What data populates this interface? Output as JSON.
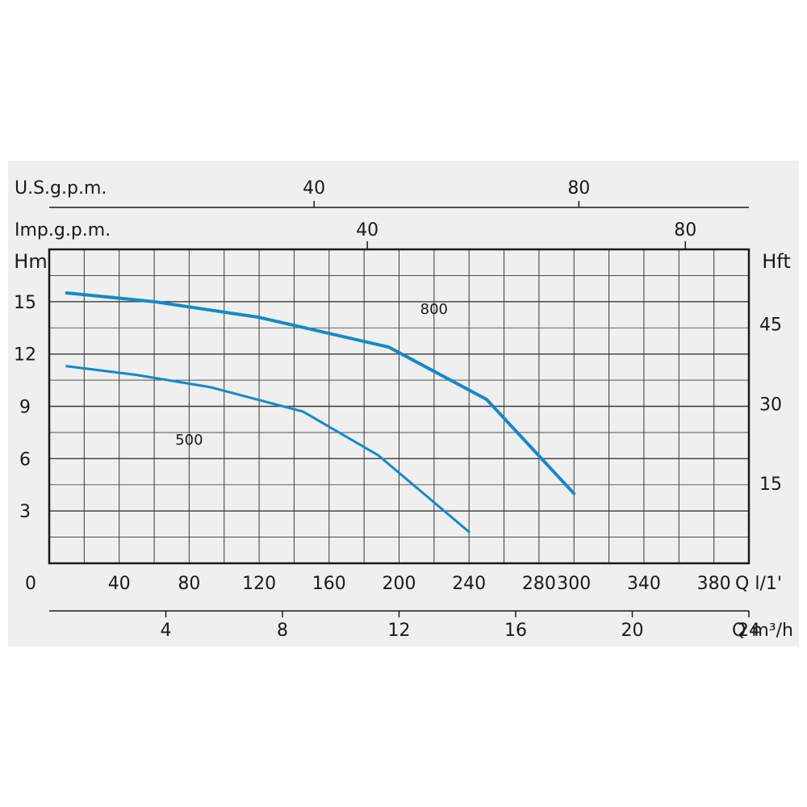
{
  "chart_data": {
    "type": "line",
    "x_axis": {
      "label": "Q l/1'",
      "ticks": [
        0,
        40,
        80,
        120,
        160,
        200,
        240,
        280,
        300,
        340,
        380
      ],
      "range": [
        0,
        400
      ],
      "grid_step": 20
    },
    "y_axis_left": {
      "label": "Hm",
      "ticks": [
        3,
        6,
        9,
        12,
        15
      ],
      "range": [
        0,
        18
      ],
      "grid_step": 1.5
    },
    "y_axis_right": {
      "label": "Hft",
      "ticks": [
        15,
        30,
        45
      ]
    },
    "secondary_axes": [
      {
        "label": "U.S.g.p.m.",
        "ticks": [
          40,
          80
        ],
        "liters_per_unit": 3.785
      },
      {
        "label": "Imp.g.p.m.",
        "ticks": [
          40,
          80
        ],
        "liters_per_unit": 4.546
      },
      {
        "label": "Q m³/h",
        "ticks": [
          4,
          8,
          12,
          16,
          20,
          24
        ],
        "liters_per_unit": 16.6667
      }
    ],
    "series": [
      {
        "name": "800",
        "label_at": [
          220,
          14.3
        ],
        "stroke_width": 4,
        "x": [
          10,
          60,
          120,
          194,
          250,
          300
        ],
        "y": [
          15.5,
          15.0,
          14.1,
          12.4,
          9.4,
          4.0
        ]
      },
      {
        "name": "500",
        "label_at": [
          80,
          6.8
        ],
        "stroke_width": 3,
        "x": [
          10,
          50,
          92,
          145,
          188,
          240
        ],
        "y": [
          11.3,
          10.8,
          10.1,
          8.7,
          6.2,
          1.8
        ]
      }
    ],
    "grid": true,
    "line_color": "#1589c8"
  }
}
